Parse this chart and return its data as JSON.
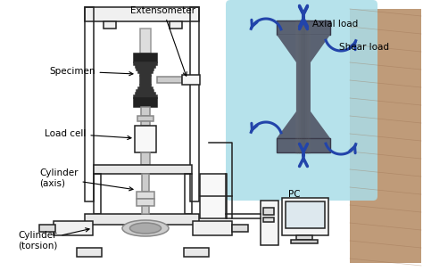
{
  "bg_color": "#ffffff",
  "light_blue_bg": "#aadde8",
  "machine_line_color": "#222222",
  "arrow_color": "#2244aa",
  "label_color": "#000000",
  "labels": {
    "extensometer": "Extensometer",
    "specimen": "Specimen",
    "load_cell": "Load cell",
    "cylinder_axis": "Cylinder\n(axis)",
    "cylinder_torsion": "Cylinder\n(torsion)",
    "axial_load": "Axial load",
    "shear_load": "Shear load",
    "pc": "PC"
  },
  "figsize": [
    4.74,
    3.04
  ],
  "dpi": 100
}
